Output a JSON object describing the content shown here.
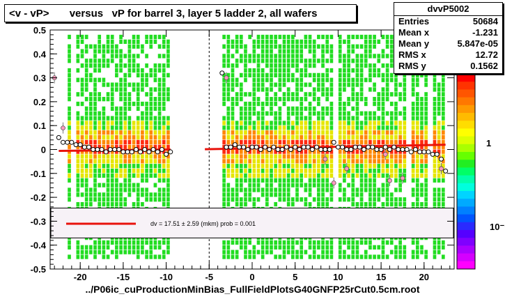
{
  "title": "<v - vP>       versus   vP for barrel 3, layer 5 ladder 2, all wafers",
  "footer": "../P06ic_cuProductionMinBias_FullFieldPlotsG40GNFP25rCut0.5cm.root",
  "stats": {
    "name": "dvvP5002",
    "rows": [
      {
        "key": "Entries",
        "value": "50684"
      },
      {
        "key": "Mean x",
        "value": "-1.231"
      },
      {
        "key": "Mean y",
        "value": "5.847e-05"
      },
      {
        "key": "RMS x",
        "value": "12.72"
      },
      {
        "key": "RMS y",
        "value": "0.1562"
      }
    ]
  },
  "fit_legend": {
    "text": "dv =    17.51 ±  2.59 (mkm) prob = 0.001",
    "line_color": "#e8130c"
  },
  "colors": {
    "band_green": "#22dd22",
    "band_yellow": "#e6e600",
    "band_orange": "#ff8800",
    "band_red": "#ff2a10",
    "fit": "#e8130c"
  },
  "palette_labels": [
    "1",
    "10⁻¹"
  ],
  "chart_data": {
    "type": "scatter",
    "title": "<v - vP>       versus   vP for barrel 3, layer 5 ladder 2, all wafers",
    "xlabel": "",
    "ylabel": "",
    "xlim": [
      -23.5,
      23.5
    ],
    "ylim": [
      -0.5,
      0.5
    ],
    "xticks": [
      -20,
      -15,
      -10,
      -5,
      0,
      5,
      10,
      15,
      20
    ],
    "yticks": [
      -0.5,
      -0.4,
      -0.3,
      -0.2,
      -0.1,
      0,
      0.1,
      0.2,
      0.3,
      0.4,
      0.5
    ],
    "x": [
      -22.5,
      -22,
      -21.5,
      -21,
      -20.5,
      -20,
      -19.5,
      -19,
      -18.5,
      -18,
      -17.5,
      -17,
      -16.5,
      -16,
      -15.5,
      -15,
      -14.5,
      -14,
      -13.5,
      -13,
      -12.5,
      -12,
      -11.5,
      -11,
      -10.5,
      -10,
      -9.5,
      -3.5,
      -3,
      -2.5,
      -2,
      -1.5,
      -1,
      -0.5,
      0,
      0.5,
      1,
      1.5,
      2,
      2.5,
      3,
      3.5,
      4,
      4.5,
      5,
      5.5,
      6,
      6.5,
      7,
      7.5,
      8,
      8.5,
      9,
      9.5,
      10,
      10.5,
      11,
      11.5,
      12,
      12.5,
      13,
      13.5,
      14,
      14.5,
      15,
      15.5,
      16,
      16.5,
      17,
      17.5,
      18,
      18.5,
      19,
      19.5,
      20,
      20.5,
      21,
      21.5,
      22,
      22.5
    ],
    "y": [
      0.05,
      0.03,
      0.03,
      0.03,
      0.02,
      0.02,
      0.01,
      0.01,
      0.0,
      0.0,
      0.0,
      -0.01,
      0.0,
      0.0,
      0.0,
      -0.01,
      -0.01,
      -0.01,
      0.0,
      -0.01,
      0.0,
      -0.01,
      0.0,
      -0.01,
      0.0,
      -0.02,
      -0.01,
      0.32,
      0.01,
      0.01,
      0.02,
      0.01,
      0.01,
      0.0,
      0.01,
      0.01,
      0.0,
      0.01,
      0.0,
      0.01,
      0.0,
      0.0,
      0.01,
      0.0,
      0.01,
      0.0,
      0.01,
      0.01,
      0.0,
      0.01,
      0.0,
      0.0,
      0.0,
      0.03,
      0.01,
      0.01,
      0.0,
      0.0,
      0.01,
      0.01,
      0.0,
      0.01,
      0.01,
      0.0,
      0.0,
      0.01,
      0.0,
      0.01,
      0.0,
      0.0,
      0.0,
      -0.01,
      0.0,
      -0.01,
      -0.01,
      -0.01,
      -0.02,
      -0.02,
      -0.04,
      -0.09
    ],
    "outliers": {
      "x": [
        -23,
        -22,
        8.5,
        11,
        15.5,
        16,
        17.5,
        22,
        -3,
        9.5
      ],
      "y": [
        0.3,
        0.09,
        -0.04,
        -0.08,
        -0.02,
        -0.13,
        -0.12,
        -0.08,
        0.3,
        -0.14
      ]
    },
    "fit": {
      "segments": [
        {
          "x": [
            -22.5,
            -9.5
          ],
          "y": [
            -0.006,
            0.0
          ]
        },
        {
          "x": [
            -5.5,
            22.5
          ],
          "y": [
            0.001,
            0.02
          ]
        }
      ]
    },
    "colz_bands": [
      [
        -22,
        -9.5
      ],
      [
        -3.5,
        22.5
      ]
    ],
    "legend_placement": "bottom-inside"
  }
}
